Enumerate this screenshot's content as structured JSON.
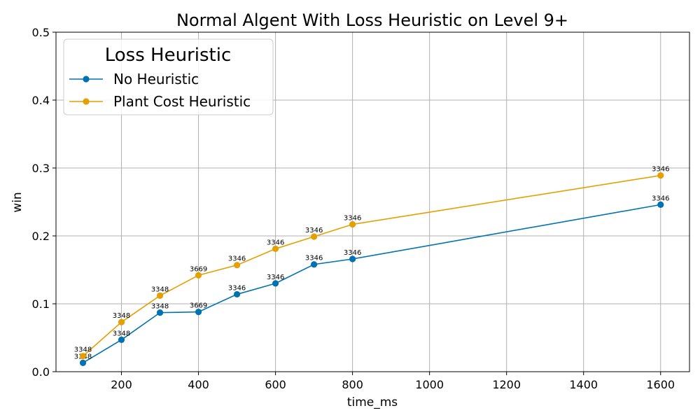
{
  "chart_data": {
    "type": "line",
    "title": "Normal Algent With Loss Heuristic on Level 9+",
    "xlabel": "time_ms",
    "ylabel": "win",
    "xlim": [
      30,
      1675
    ],
    "ylim": [
      0,
      0.5
    ],
    "xticks": [
      200,
      400,
      600,
      800,
      1000,
      1200,
      1400,
      1600
    ],
    "yticks": [
      0.0,
      0.1,
      0.2,
      0.3,
      0.4,
      0.5
    ],
    "grid": true,
    "legend": {
      "title": "Loss Heuristic",
      "placement": "top-left"
    },
    "x": [
      100,
      200,
      300,
      400,
      500,
      600,
      700,
      800,
      1600
    ],
    "series": [
      {
        "name": "No Heuristic",
        "color": "#0072b2",
        "values": [
          0.013,
          0.047,
          0.087,
          0.088,
          0.114,
          0.13,
          0.158,
          0.166,
          0.246
        ],
        "labels": [
          "3348",
          "3348",
          "3348",
          "3669",
          "3346",
          "3346",
          "3346",
          "3346",
          "3346"
        ]
      },
      {
        "name": "Plant Cost Heuristic",
        "color": "#e69f00",
        "values": [
          0.023,
          0.073,
          0.112,
          0.142,
          0.157,
          0.181,
          0.199,
          0.217,
          0.289
        ],
        "labels": [
          "3348",
          "3348",
          "3348",
          "3669",
          "3346",
          "3346",
          "3346",
          "3346",
          "3346"
        ]
      }
    ]
  }
}
